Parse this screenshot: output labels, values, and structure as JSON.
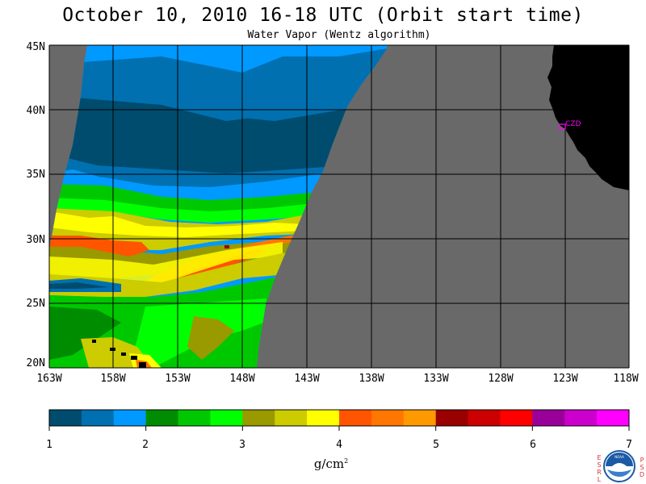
{
  "header": {
    "title": "October 10, 2010  16-18 UTC  (Orbit start time)",
    "subtitle": "Water Vapor (Wentz algorithm)"
  },
  "map": {
    "lat_labels": [
      "45N",
      "40N",
      "35N",
      "30N",
      "25N",
      "20N"
    ],
    "lon_labels": [
      "163W",
      "158W",
      "153W",
      "148W",
      "143W",
      "138W",
      "133W",
      "128W",
      "123W",
      "118W"
    ],
    "marker_label": "CZD",
    "marker_color": "#ff00ff",
    "no_data_color": "#696969",
    "land_color": "#000000"
  },
  "colorbar": {
    "colors": [
      "#004c6e",
      "#0070b0",
      "#0099ff",
      "#008c00",
      "#00c800",
      "#00ff00",
      "#999900",
      "#cccc00",
      "#ffff00",
      "#ff5500",
      "#ff7700",
      "#ff9900",
      "#990000",
      "#cc0000",
      "#ff0000",
      "#990099",
      "#cc00cc",
      "#ff00ff"
    ],
    "ticks": [
      "1",
      "2",
      "3",
      "4",
      "5",
      "6",
      "7"
    ],
    "units": "g/cm",
    "units_exp": "2"
  },
  "logo": {
    "noaa_text": "NOAA",
    "esrl": [
      "E",
      "S",
      "R",
      "L"
    ],
    "psd": [
      "P",
      "S",
      "D"
    ]
  }
}
